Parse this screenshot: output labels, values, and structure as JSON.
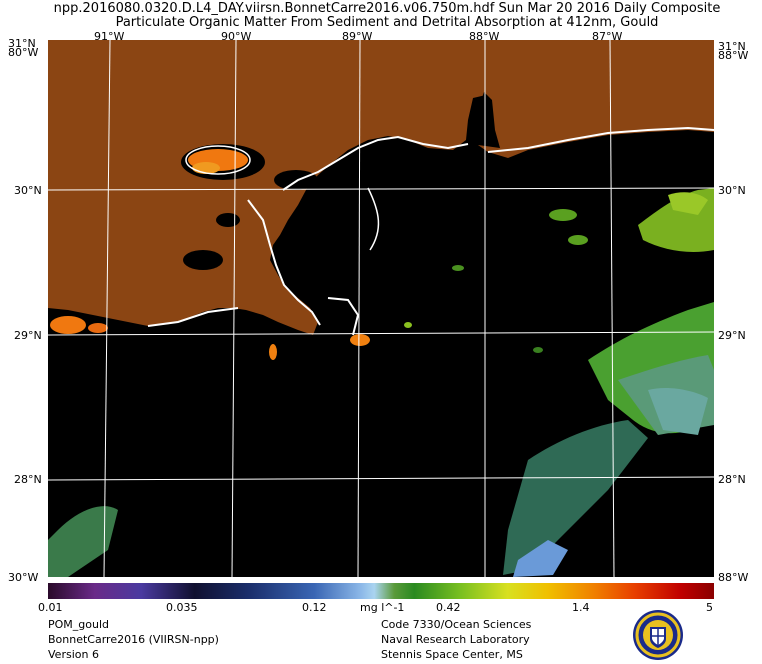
{
  "title_line1": "npp.2016080.0320.D.L4_DAY.viirsn.BonnetCarre2016.v06.750m.hdf     Sun Mar 20 2016 Daily Composite",
  "title_line2": "Particulate Organic Matter From Sediment and Detrital Absorption at 412nm, Gould",
  "map": {
    "lon_labels": [
      "91°W",
      "90°W",
      "89°W",
      "88°W",
      "87°W"
    ],
    "lat_labels": [
      "30°N",
      "29°N",
      "28°N"
    ],
    "corner_top_left": "31°N",
    "corner_top_left_lon": "80°W",
    "corner_top_right": "31°N",
    "corner_top_right_lon": "88°W",
    "corner_bottom_left": "30°W",
    "corner_bottom_right": "88°W",
    "land_color": "#8B4513",
    "water_color": "#000000",
    "grid_color": "#ffffff"
  },
  "colorbar": {
    "labels": [
      "0.01",
      "0.035",
      "0.12",
      "0.42",
      "1.4",
      "5"
    ],
    "units": "mg l^-1"
  },
  "footer": {
    "left": [
      "POM_gould",
      "BonnetCarre2016 (VIIRSN-npp)",
      "Version 6"
    ],
    "right": [
      "Code 7330/Ocean Sciences",
      "Naval Research Laboratory",
      "Stennis Space Center, MS"
    ]
  },
  "logo": {
    "name": "nrl-seal"
  }
}
